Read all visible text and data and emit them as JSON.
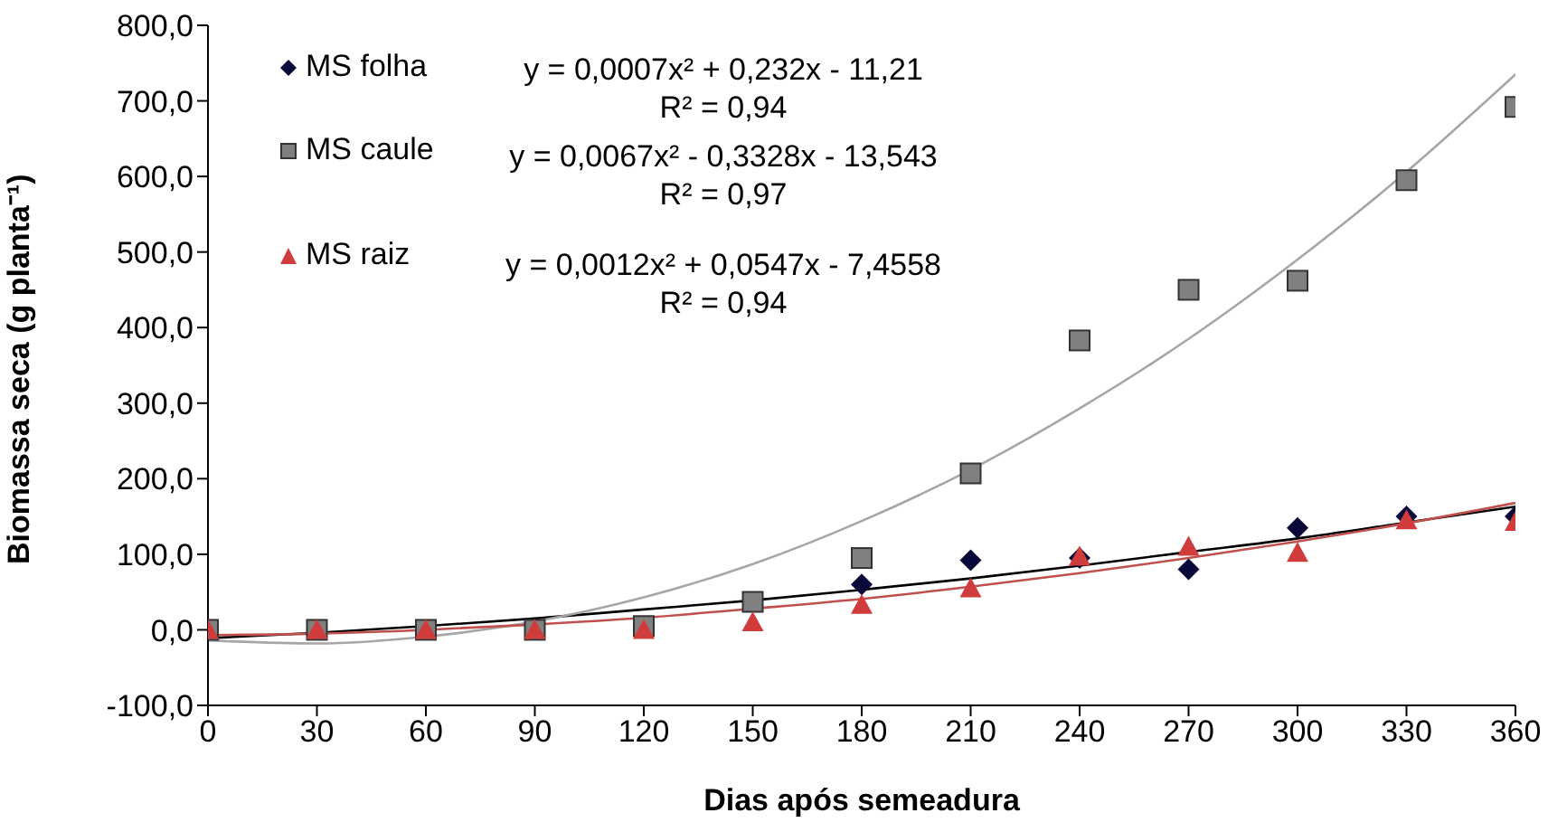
{
  "chart_data": {
    "type": "scatter",
    "xlabel": "Dias após semeadura",
    "ylabel": "Biomassa seca (g planta⁻¹)",
    "xlim": [
      0,
      360
    ],
    "xticks": [
      0,
      30,
      60,
      90,
      120,
      150,
      180,
      210,
      240,
      270,
      300,
      330,
      360
    ],
    "ylim": [
      -100,
      800
    ],
    "yticks": [
      {
        "value": -100,
        "label": "-100,0"
      },
      {
        "value": 0,
        "label": "0,0"
      },
      {
        "value": 100,
        "label": "100,0"
      },
      {
        "value": 200,
        "label": "200,0"
      },
      {
        "value": 300,
        "label": "300,0"
      },
      {
        "value": 400,
        "label": "400,0"
      },
      {
        "value": 500,
        "label": "500,0"
      },
      {
        "value": 600,
        "label": "600,0"
      },
      {
        "value": 700,
        "label": "700,0"
      },
      {
        "value": 800,
        "label": "800,0"
      }
    ],
    "legend": "top left",
    "x": [
      0,
      30,
      60,
      90,
      120,
      150,
      180,
      210,
      240,
      270,
      300,
      330,
      360
    ],
    "series": [
      {
        "name": "MS folha",
        "color": "#0a0a3a",
        "marker": "diamond",
        "values": [
          null,
          null,
          null,
          null,
          null,
          null,
          60,
          92,
          95,
          80,
          135,
          150,
          150
        ]
      },
      {
        "name": "MS caule",
        "color": "#808080",
        "marker": "square",
        "values": [
          0,
          0,
          0,
          0,
          5,
          37,
          95,
          207,
          383,
          450,
          462,
          595,
          692
        ]
      },
      {
        "name": "MS raiz",
        "color": "#d03c3c",
        "marker": "triangle",
        "values": [
          0,
          0,
          0,
          0,
          0,
          10,
          33,
          55,
          97,
          110,
          102,
          145,
          143
        ]
      },
      {
        "type": "line",
        "color": "#000000",
        "x": [
          0,
          30,
          60,
          90,
          120,
          150,
          180,
          210,
          240,
          270,
          300,
          330,
          360
        ],
        "values": [
          -11,
          -4,
          5,
          15,
          27,
          39,
          53,
          68,
          85,
          103,
          121,
          142,
          163
        ]
      },
      {
        "type": "line",
        "color": "#a6a6a6",
        "x": [
          0,
          30,
          60,
          90,
          120,
          150,
          180,
          210,
          240,
          270,
          300,
          330,
          360
        ],
        "values": [
          -14,
          -18,
          -9,
          11,
          43,
          87,
          144,
          212,
          293,
          385,
          490,
          606,
          735
        ]
      },
      {
        "type": "line",
        "color": "#c0504d",
        "x": [
          0,
          30,
          60,
          90,
          120,
          150,
          180,
          210,
          240,
          270,
          300,
          330,
          360
        ],
        "values": [
          -7,
          -5,
          0,
          7,
          16,
          28,
          41,
          57,
          75,
          95,
          117,
          141,
          168
        ]
      }
    ],
    "annotations": [
      "y = 0,0007x² + 0,232x - 11,21",
      "R² = 0,94",
      "y = 0,0067x² - 0,3328x - 13,543",
      "R² = 0,97",
      "y = 0,0012x² + 0,0547x - 7,4558",
      "R² = 0,94"
    ]
  }
}
